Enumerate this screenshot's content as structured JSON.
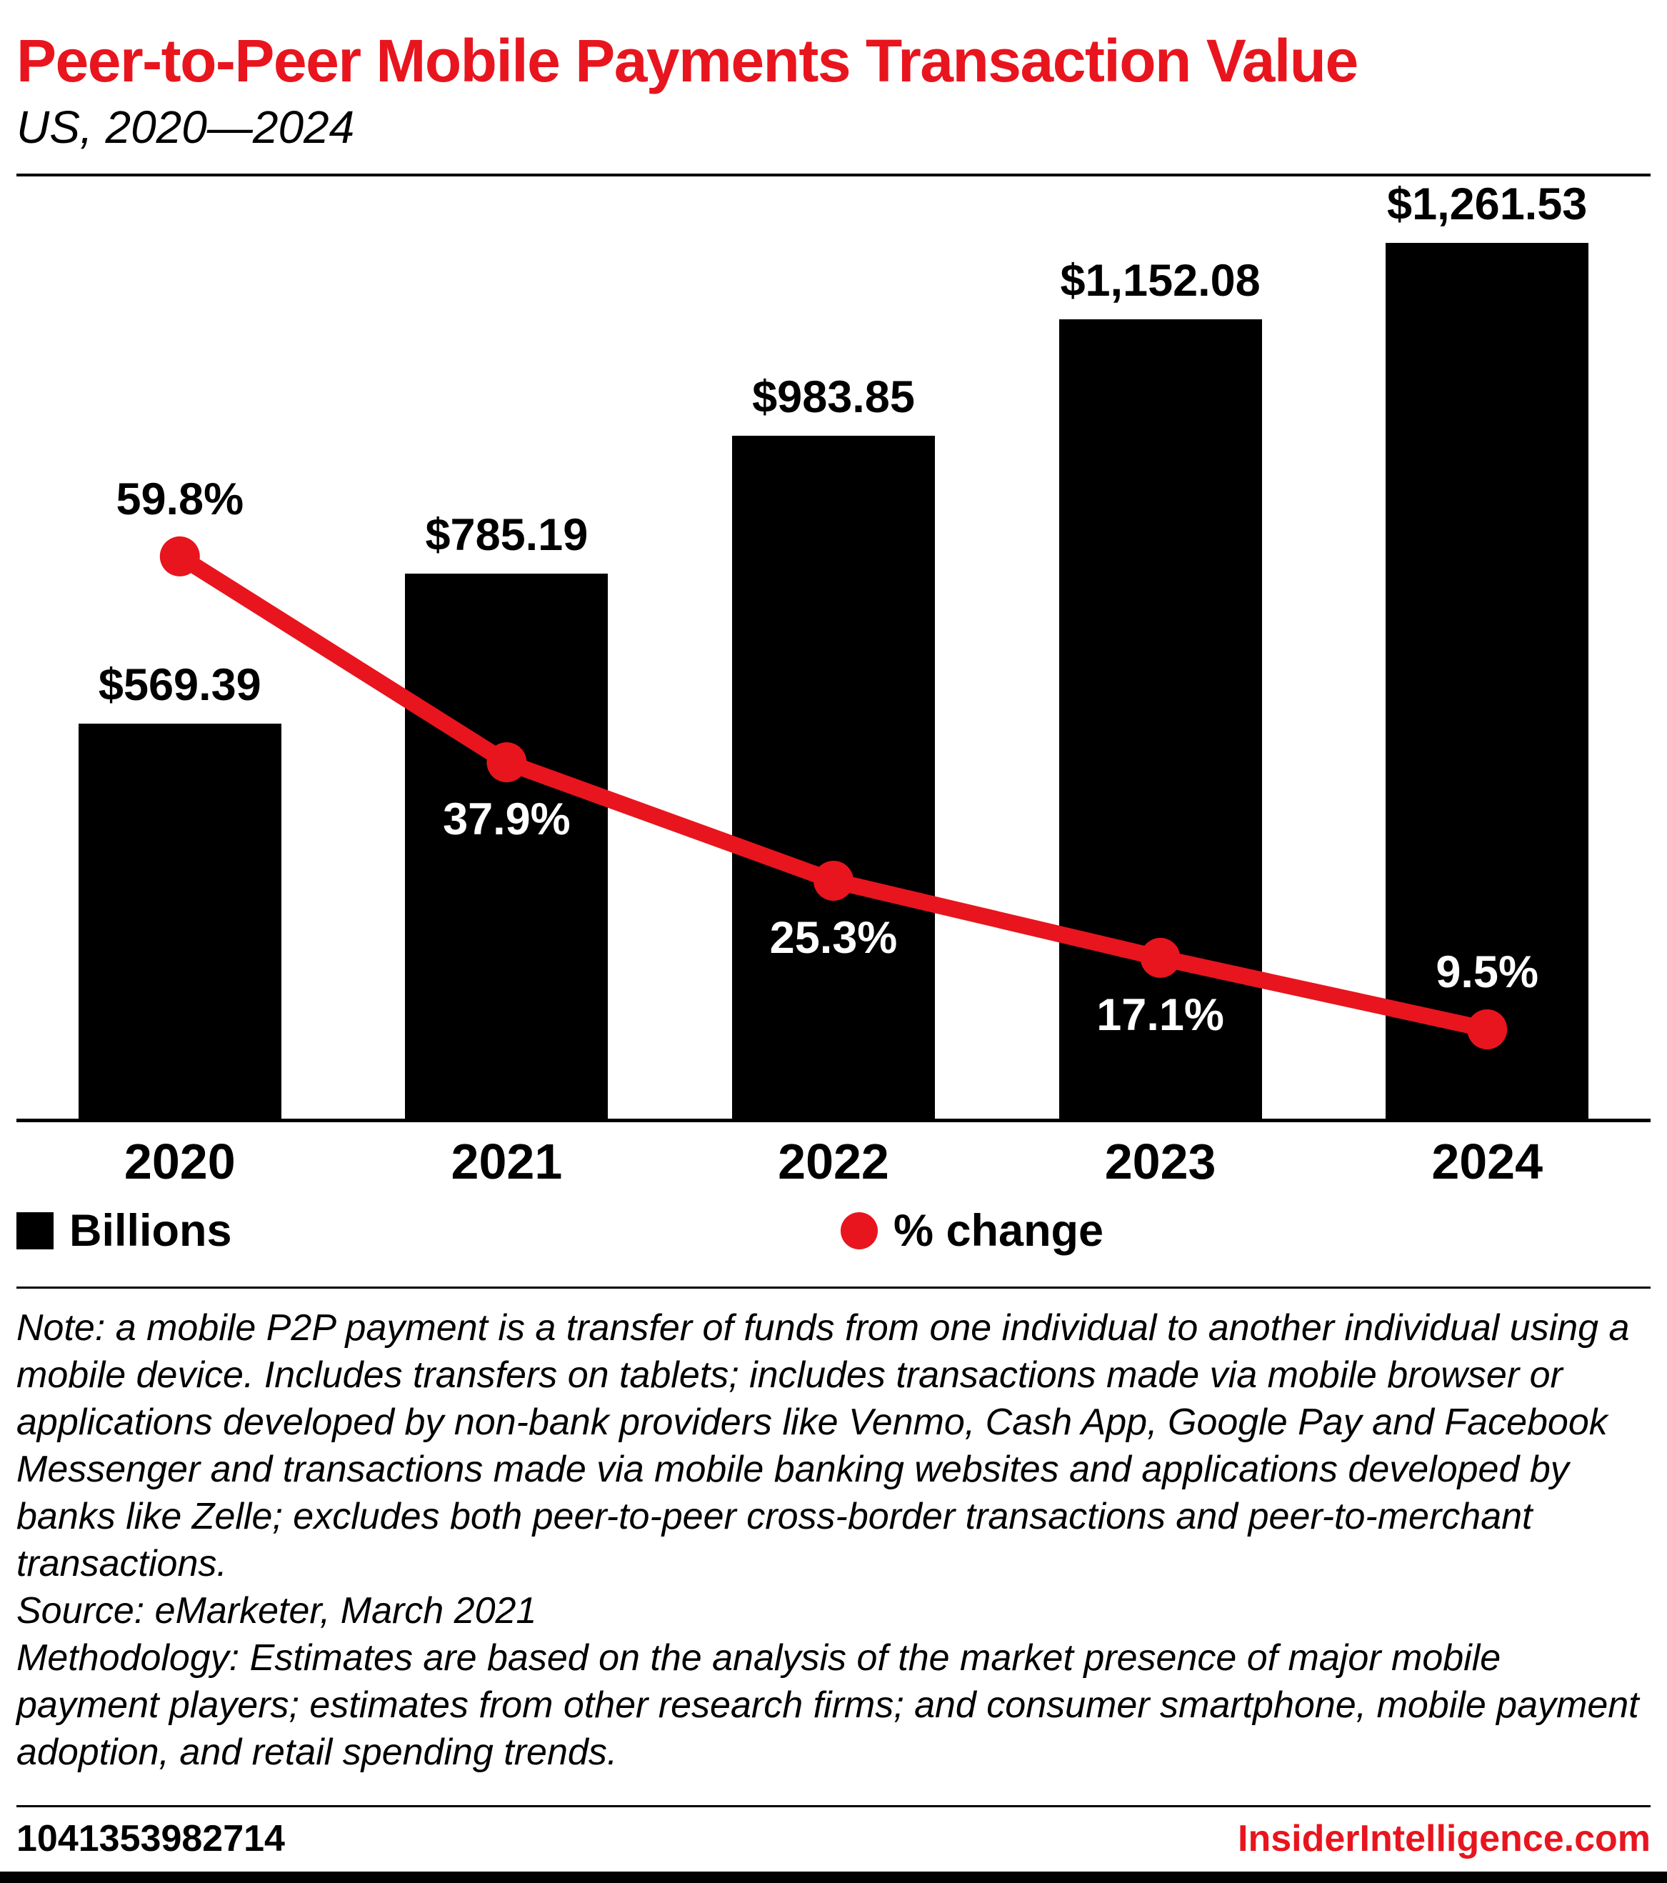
{
  "header": {
    "title": "Peer-to-Peer Mobile Payments Transaction Value",
    "subtitle": "US, 2020—2024"
  },
  "chart_data": {
    "type": "bar",
    "title": "Peer-to-Peer Mobile Payments Transaction Value, US, 2020—2024",
    "categories": [
      "2020",
      "2021",
      "2022",
      "2023",
      "2024"
    ],
    "series": [
      {
        "name": "Billions",
        "type": "bar",
        "color": "#000000",
        "values": [
          569.39,
          785.19,
          983.85,
          1152.08,
          1261.53
        ],
        "labels": [
          "$569.39",
          "$785.19",
          "$983.85",
          "$1,152.08",
          "$1,261.53"
        ]
      },
      {
        "name": "% change",
        "type": "line",
        "color": "#e8151e",
        "values": [
          59.8,
          37.9,
          25.3,
          17.1,
          9.5
        ],
        "labels": [
          "59.8%",
          "37.9%",
          "25.3%",
          "17.1%",
          "9.5%"
        ],
        "label_side": [
          "above",
          "below",
          "below",
          "below",
          "above"
        ],
        "label_color": [
          "#000000",
          "#ffffff",
          "#ffffff",
          "#ffffff",
          "#ffffff"
        ]
      }
    ],
    "bar_axis_max": 1341,
    "pct_axis_max": 99,
    "grid": false,
    "legend_position": "bottom",
    "xlabel": "",
    "ylabel": ""
  },
  "notes": {
    "note": "Note: a mobile P2P payment is a transfer of funds from one individual to another individual using a mobile device. Includes transfers on tablets; includes transactions made via mobile browser or applications developed by non-bank providers like Venmo, Cash App, Google Pay and Facebook Messenger and transactions made via mobile banking websites and applications developed by banks like Zelle; excludes both peer-to-peer cross-border transactions and peer-to-merchant transactions.",
    "source": "Source: eMarketer, March 2021",
    "methodology": "Methodology: Estimates are based on the analysis of the market presence of major mobile payment players; estimates from other research firms; and consumer smartphone, mobile payment adoption, and retail spending trends."
  },
  "footer": {
    "id": "1041353982714",
    "site": "InsiderIntelligence.com"
  },
  "colors": {
    "accent_red": "#e8151e",
    "bar_black": "#000000"
  }
}
